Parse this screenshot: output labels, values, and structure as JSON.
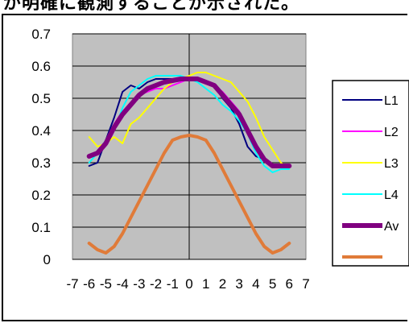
{
  "header": {
    "text": "が明確に観測することが示された。"
  },
  "chart_data": {
    "type": "line",
    "x": [
      -6,
      -5.5,
      -5,
      -4.5,
      -4,
      -3.5,
      -3,
      -2.5,
      -2,
      -1.5,
      -1,
      -0.5,
      0,
      0.5,
      1,
      1.5,
      2,
      2.5,
      3,
      3.5,
      4,
      4.5,
      5,
      5.5,
      6
    ],
    "xlim": [
      -7,
      7
    ],
    "xticks": [
      "-7",
      "-6",
      "-5",
      "-4",
      "-3",
      "-2",
      "-1",
      "0",
      "1",
      "2",
      "3",
      "4",
      "5",
      "6",
      "7"
    ],
    "ylim": [
      0,
      0.7
    ],
    "yticks": [
      "0",
      "0.1",
      "0.2",
      "0.3",
      "0.4",
      "0.5",
      "0.6",
      "0.7"
    ],
    "grid": true,
    "plot_background": "#c0c0c0",
    "legend_position": "right",
    "series": [
      {
        "name": "L1",
        "color": "#000080",
        "width": 2,
        "values": [
          0.29,
          0.3,
          0.37,
          0.44,
          0.52,
          0.54,
          0.53,
          0.55,
          0.56,
          0.56,
          0.56,
          0.56,
          0.56,
          0.56,
          0.55,
          0.54,
          0.5,
          0.47,
          0.42,
          0.35,
          0.32,
          0.31,
          0.29,
          0.29,
          0.29
        ]
      },
      {
        "name": "L2",
        "color": "#ff00ff",
        "width": 2,
        "values": [
          0.32,
          0.33,
          0.36,
          0.42,
          0.46,
          0.48,
          0.51,
          0.52,
          0.53,
          0.53,
          0.54,
          0.55,
          0.56,
          0.56,
          0.55,
          0.54,
          0.52,
          0.49,
          0.46,
          0.4,
          0.34,
          0.31,
          0.29,
          0.29,
          0.29
        ]
      },
      {
        "name": "L3",
        "color": "#ffff00",
        "width": 2,
        "values": [
          0.38,
          0.35,
          0.36,
          0.38,
          0.36,
          0.42,
          0.44,
          0.47,
          0.5,
          0.53,
          0.55,
          0.56,
          0.57,
          0.58,
          0.58,
          0.57,
          0.56,
          0.55,
          0.52,
          0.49,
          0.44,
          0.38,
          0.34,
          0.3,
          0.28
        ]
      },
      {
        "name": "L4",
        "color": "#00ffff",
        "width": 2,
        "values": [
          0.3,
          0.33,
          0.37,
          0.4,
          0.47,
          0.52,
          0.54,
          0.56,
          0.57,
          0.57,
          0.57,
          0.57,
          0.56,
          0.55,
          0.53,
          0.51,
          0.48,
          0.46,
          0.43,
          0.39,
          0.33,
          0.29,
          0.27,
          0.28,
          0.28
        ]
      },
      {
        "name": "Av",
        "color": "#800080",
        "width": 6,
        "values": [
          0.32,
          0.33,
          0.36,
          0.41,
          0.45,
          0.48,
          0.51,
          0.53,
          0.54,
          0.55,
          0.555,
          0.56,
          0.56,
          0.56,
          0.55,
          0.54,
          0.51,
          0.48,
          0.45,
          0.4,
          0.35,
          0.31,
          0.29,
          0.29,
          0.29
        ]
      },
      {
        "name": "",
        "color": "#e07b39",
        "width": 4,
        "values": [
          0.05,
          0.03,
          0.02,
          0.04,
          0.08,
          0.13,
          0.18,
          0.23,
          0.28,
          0.33,
          0.37,
          0.38,
          0.385,
          0.38,
          0.37,
          0.33,
          0.28,
          0.23,
          0.18,
          0.13,
          0.08,
          0.04,
          0.02,
          0.03,
          0.05
        ]
      }
    ]
  }
}
